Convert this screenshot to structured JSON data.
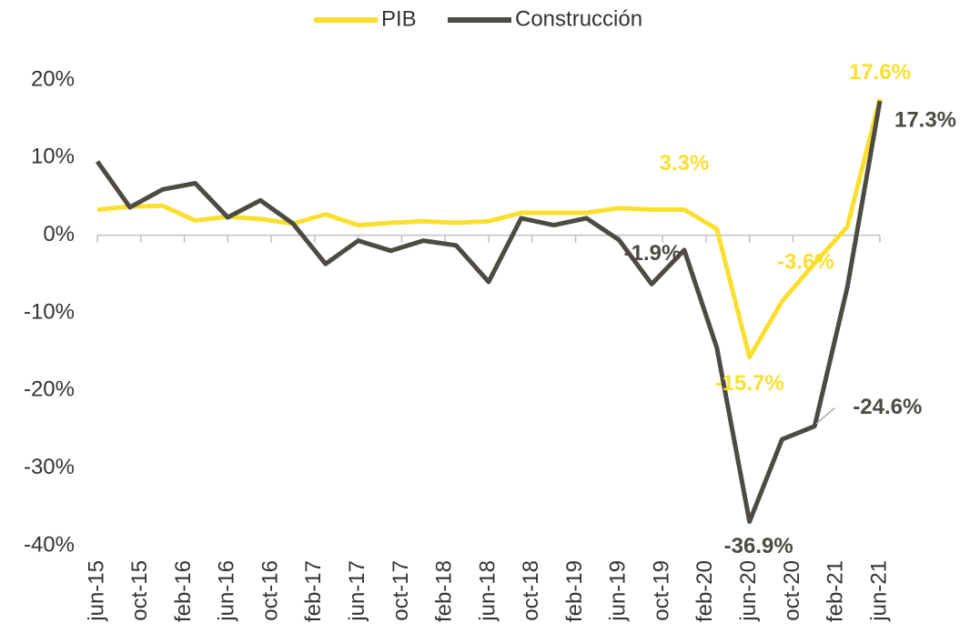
{
  "chart_data": {
    "type": "line",
    "x": [
      "2015-06",
      "2015-09",
      "2015-12",
      "2016-03",
      "2016-06",
      "2016-09",
      "2016-12",
      "2017-03",
      "2017-06",
      "2017-09",
      "2017-12",
      "2018-03",
      "2018-06",
      "2018-09",
      "2018-12",
      "2019-03",
      "2019-06",
      "2019-09",
      "2019-12",
      "2020-03",
      "2020-06",
      "2020-09",
      "2020-12",
      "2021-03",
      "2021-06"
    ],
    "series": [
      {
        "name": "PIB",
        "color": "#fbdf2f",
        "values": [
          3.3,
          3.7,
          3.8,
          1.9,
          2.4,
          2.1,
          1.5,
          2.7,
          1.3,
          1.6,
          1.8,
          1.6,
          1.8,
          2.9,
          2.9,
          2.9,
          3.5,
          3.3,
          3.3,
          0.8,
          -15.7,
          -8.5,
          -3.6,
          1.1,
          17.6
        ],
        "value_labels": [
          null,
          null,
          null,
          null,
          null,
          null,
          null,
          null,
          null,
          null,
          null,
          null,
          null,
          null,
          null,
          null,
          null,
          null,
          "3.3%",
          null,
          "-15.7%",
          null,
          "-3.6%",
          null,
          "17.6%"
        ]
      },
      {
        "name": "Construcción",
        "color": "#4d4a43",
        "values": [
          9.5,
          3.6,
          5.9,
          6.7,
          2.3,
          4.5,
          1.5,
          -3.7,
          -0.7,
          -2.0,
          -0.7,
          -1.3,
          -6.0,
          2.2,
          1.3,
          2.2,
          -0.6,
          -6.3,
          -1.9,
          -14.5,
          -36.9,
          -26.3,
          -24.6,
          -6.7,
          17.3
        ],
        "value_labels": [
          null,
          null,
          null,
          null,
          null,
          null,
          null,
          null,
          null,
          null,
          null,
          null,
          null,
          null,
          null,
          null,
          null,
          null,
          "-1.9%",
          null,
          "-36.9%",
          null,
          "-24.6%",
          null,
          "17.3%"
        ]
      }
    ],
    "xticks": [
      {
        "value": "2015-06",
        "label": "jun-15"
      },
      {
        "value": "2015-10",
        "label": "oct-15"
      },
      {
        "value": "2016-02",
        "label": "feb-16"
      },
      {
        "value": "2016-06",
        "label": "jun-16"
      },
      {
        "value": "2016-10",
        "label": "oct-16"
      },
      {
        "value": "2017-02",
        "label": "feb-17"
      },
      {
        "value": "2017-06",
        "label": "jun-17"
      },
      {
        "value": "2017-10",
        "label": "oct-17"
      },
      {
        "value": "2018-02",
        "label": "feb-18"
      },
      {
        "value": "2018-06",
        "label": "jun-18"
      },
      {
        "value": "2018-10",
        "label": "oct-18"
      },
      {
        "value": "2019-02",
        "label": "feb-19"
      },
      {
        "value": "2019-06",
        "label": "jun-19"
      },
      {
        "value": "2019-10",
        "label": "oct-19"
      },
      {
        "value": "2020-02",
        "label": "feb-20"
      },
      {
        "value": "2020-06",
        "label": "jun-20"
      },
      {
        "value": "2020-10",
        "label": "oct-20"
      },
      {
        "value": "2021-02",
        "label": "feb-21"
      },
      {
        "value": "2021-06",
        "label": "jun-21"
      }
    ],
    "ylim": [
      -40,
      20
    ],
    "yticks": [
      {
        "value": -40,
        "label": "-40%"
      },
      {
        "value": -30,
        "label": "-30%"
      },
      {
        "value": -20,
        "label": "-20%"
      },
      {
        "value": -10,
        "label": "-10%"
      },
      {
        "value": 0,
        "label": "0%"
      },
      {
        "value": 10,
        "label": "10%"
      },
      {
        "value": 20,
        "label": "20%"
      }
    ],
    "legend": "top",
    "grid": false
  }
}
